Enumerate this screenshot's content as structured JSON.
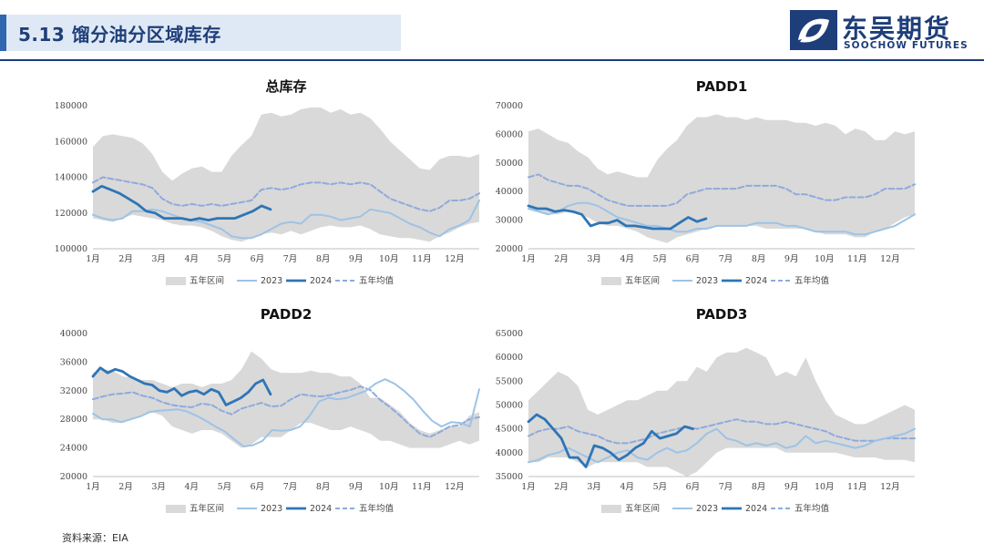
{
  "header": {
    "title": "5.13 馏分油分区域库存",
    "logo_cn": "东吴期货",
    "logo_en": "SOOCHOW FUTURES"
  },
  "footer": {
    "source": "资料来源：EIA"
  },
  "colors": {
    "band": "#d9d9d9",
    "y2023": "#9dc3e6",
    "y2024": "#2e75b6",
    "avg": "#8faadc"
  },
  "chart_data": [
    {
      "id": "total",
      "type": "line",
      "title": "总库存",
      "ylim": [
        100000,
        180000
      ],
      "yticks": [
        "100000",
        "120000",
        "140000",
        "160000",
        "180000"
      ],
      "ytick_values": [
        100000,
        120000,
        140000,
        160000,
        180000
      ],
      "xticks": [
        "1月",
        "2月",
        "3月",
        "4月",
        "5月",
        "6月",
        "7月",
        "8月",
        "9月",
        "10月",
        "11月",
        "12月"
      ],
      "legend": [
        "五年区间",
        "2023",
        "2024",
        "五年均值"
      ],
      "band_max": [
        157000,
        163000,
        164000,
        163000,
        162000,
        159000,
        153000,
        143000,
        138000,
        142000,
        145000,
        146000,
        143000,
        143000,
        152000,
        158000,
        163000,
        175000,
        176000,
        174000,
        175000,
        178000,
        179000,
        179000,
        176000,
        178000,
        175000,
        176000,
        173000,
        167000,
        160000,
        155000,
        150000,
        145000,
        144000,
        150000,
        152000,
        152000,
        151000,
        153000
      ],
      "band_min": [
        117000,
        116000,
        115000,
        117000,
        119000,
        118000,
        117000,
        116000,
        114000,
        113000,
        113000,
        112000,
        110000,
        107000,
        105000,
        104000,
        106000,
        108000,
        109000,
        108000,
        110000,
        108000,
        110000,
        112000,
        113000,
        112000,
        112000,
        113000,
        111000,
        108000,
        107000,
        106000,
        106000,
        105000,
        104000,
        107000,
        109000,
        112000,
        114000,
        115000
      ],
      "avg": [
        137000,
        140000,
        139000,
        138000,
        137000,
        136000,
        134000,
        128000,
        125000,
        124000,
        125000,
        124000,
        125000,
        124000,
        125000,
        126000,
        127000,
        133000,
        134000,
        133000,
        134000,
        136000,
        137000,
        137000,
        136000,
        137000,
        136000,
        137000,
        136000,
        132000,
        128000,
        126000,
        124000,
        122000,
        121000,
        123000,
        127000,
        127000,
        128000,
        131000
      ],
      "y2023": [
        119000,
        117000,
        116000,
        117000,
        121000,
        121000,
        122000,
        121000,
        119000,
        117000,
        116000,
        115000,
        113000,
        111000,
        107000,
        106000,
        106000,
        108000,
        111000,
        114000,
        115000,
        114000,
        119000,
        119000,
        118000,
        116000,
        117000,
        118000,
        122000,
        121000,
        120000,
        117000,
        114000,
        112000,
        109000,
        107000,
        111000,
        113000,
        116000,
        127000
      ],
      "y2024": [
        132000,
        135000,
        133000,
        131000,
        128000,
        125000,
        121000,
        120000,
        117000,
        117000,
        117000,
        116000,
        117000,
        116000,
        117000,
        117000,
        117000,
        119000,
        121000,
        124000,
        122000
      ],
      "y2024_end_x": 6.4
    },
    {
      "id": "padd1",
      "type": "line",
      "title": "PADD1",
      "ylim": [
        20000,
        70000
      ],
      "yticks": [
        "20000",
        "30000",
        "40000",
        "50000",
        "60000",
        "70000"
      ],
      "ytick_values": [
        20000,
        30000,
        40000,
        50000,
        60000,
        70000
      ],
      "xticks": [
        "1月",
        "2月",
        "3月",
        "4月",
        "5月",
        "6月",
        "7月",
        "8月",
        "9月",
        "10月",
        "11月",
        "12月"
      ],
      "legend": [
        "五年区间",
        "2023",
        "2024",
        "五年均值"
      ],
      "band_max": [
        61000,
        62000,
        60000,
        58000,
        57000,
        54000,
        52000,
        48000,
        46000,
        47000,
        46000,
        45000,
        45000,
        51000,
        55000,
        58000,
        63000,
        66000,
        66000,
        67000,
        66000,
        66000,
        65000,
        66000,
        65000,
        65000,
        65000,
        64000,
        64000,
        63000,
        64000,
        63000,
        60000,
        62000,
        61000,
        58000,
        58000,
        61000,
        60000,
        61000
      ],
      "band_min": [
        34000,
        33000,
        32000,
        32000,
        33000,
        32000,
        31000,
        29000,
        28000,
        28000,
        27000,
        26000,
        24000,
        23000,
        22000,
        24000,
        25000,
        26000,
        27000,
        28000,
        28000,
        28000,
        28000,
        28000,
        27000,
        27000,
        27000,
        27000,
        27000,
        26000,
        25000,
        25000,
        25000,
        24000,
        24000,
        26000,
        27000,
        29000,
        31000,
        32000
      ],
      "avg": [
        45000,
        46000,
        44000,
        43000,
        42000,
        42000,
        41000,
        39000,
        37000,
        36000,
        35000,
        35000,
        35000,
        35000,
        35000,
        36000,
        39000,
        40000,
        41000,
        41000,
        41000,
        41000,
        42000,
        42000,
        42000,
        42000,
        41000,
        39000,
        39000,
        38000,
        37000,
        37000,
        38000,
        38000,
        38000,
        39000,
        41000,
        41000,
        41000,
        42500
      ],
      "y2023": [
        34000,
        33000,
        32000,
        33000,
        35000,
        36000,
        36000,
        35000,
        33000,
        31000,
        30000,
        29000,
        28000,
        28000,
        27000,
        26000,
        26000,
        27000,
        27000,
        28000,
        28000,
        28000,
        28000,
        29000,
        29000,
        29000,
        28000,
        28000,
        27000,
        26000,
        26000,
        26000,
        26000,
        25000,
        25000,
        26000,
        27000,
        28000,
        30000,
        32000
      ],
      "y2024": [
        35000,
        34000,
        34000,
        33000,
        33500,
        33000,
        32000,
        28000,
        29000,
        29000,
        30000,
        28000,
        28000,
        27500,
        27000,
        27000,
        27000,
        29000,
        31000,
        29500,
        30500
      ],
      "y2024_end_x": 6.4
    },
    {
      "id": "padd2",
      "type": "line",
      "title": "PADD2",
      "ylim": [
        20000,
        40000
      ],
      "yticks": [
        "20000",
        "24000",
        "28000",
        "32000",
        "36000",
        "40000"
      ],
      "ytick_values": [
        20000,
        24000,
        28000,
        32000,
        36000,
        40000
      ],
      "xticks": [
        "1月",
        "2月",
        "3月",
        "4月",
        "5月",
        "6月",
        "7月",
        "8月",
        "9月",
        "10月",
        "11月",
        "12月"
      ],
      "legend": [
        "五年区间",
        "2023",
        "2024",
        "五年均值"
      ],
      "band_max": [
        34500,
        35000,
        34800,
        34000,
        33800,
        33500,
        33500,
        33000,
        32500,
        33000,
        33000,
        32500,
        33000,
        33000,
        33500,
        35000,
        37500,
        36500,
        35000,
        34500,
        34500,
        34500,
        34800,
        34500,
        34500,
        34000,
        34000,
        33000,
        31000,
        31000,
        30000,
        29000,
        27500,
        26500,
        26000,
        26500,
        27000,
        27000,
        28500,
        29000
      ],
      "band_min": [
        28000,
        28000,
        27500,
        27500,
        28000,
        28500,
        29000,
        28500,
        27000,
        26500,
        26000,
        26500,
        26500,
        26000,
        25000,
        24000,
        24500,
        25500,
        25500,
        25500,
        26500,
        27500,
        27500,
        27000,
        26500,
        26500,
        27000,
        26500,
        26000,
        25000,
        25000,
        24500,
        24000,
        24000,
        24000,
        24000,
        24500,
        25000,
        24500,
        25000
      ],
      "avg": [
        30800,
        31200,
        31500,
        31600,
        31800,
        31300,
        31000,
        30400,
        30000,
        29800,
        29700,
        30200,
        30000,
        29200,
        28700,
        29500,
        29900,
        30300,
        29800,
        29900,
        30800,
        31500,
        31300,
        31200,
        31400,
        31800,
        32100,
        32600,
        32100,
        30700,
        29700,
        28500,
        27200,
        26000,
        25500,
        26200,
        27000,
        27200,
        28000,
        28300
      ],
      "y2023": [
        28800,
        28000,
        28000,
        27600,
        28000,
        28400,
        29000,
        29200,
        29300,
        29400,
        29100,
        28500,
        27800,
        27000,
        26300,
        25200,
        24200,
        24400,
        25000,
        26500,
        26400,
        26500,
        27000,
        28500,
        30500,
        31000,
        30800,
        31000,
        31500,
        32000,
        33000,
        33600,
        33000,
        32000,
        30800,
        29200,
        27800,
        27000,
        27600,
        27500,
        27000,
        32200
      ],
      "y2024": [
        34000,
        35200,
        34500,
        35000,
        34700,
        34000,
        33500,
        33000,
        32800,
        32000,
        31800,
        32300,
        31300,
        31800,
        32000,
        31500,
        32200,
        31800,
        30000,
        30500,
        31000,
        31800,
        33000,
        33500,
        31500
      ],
      "y2024_end_x": 6.4
    },
    {
      "id": "padd3",
      "type": "line",
      "title": "PADD3",
      "ylim": [
        35000,
        65000
      ],
      "yticks": [
        "35000",
        "40000",
        "45000",
        "50000",
        "55000",
        "60000",
        "65000"
      ],
      "ytick_values": [
        35000,
        40000,
        45000,
        50000,
        55000,
        60000,
        65000
      ],
      "xticks": [
        "1月",
        "2月",
        "3月",
        "4月",
        "5月",
        "6月",
        "7月",
        "8月",
        "9月",
        "10月",
        "11月",
        "12月"
      ],
      "legend": [
        "五年区间",
        "2023",
        "2024",
        "五年均值"
      ],
      "band_max": [
        51000,
        53000,
        55000,
        57000,
        56000,
        54000,
        49000,
        48000,
        49000,
        50000,
        51000,
        51000,
        52000,
        53000,
        53000,
        55000,
        55000,
        58000,
        57000,
        60000,
        61000,
        61000,
        62000,
        61000,
        60000,
        56000,
        57000,
        56000,
        60000,
        55000,
        51000,
        48000,
        47000,
        46000,
        46000,
        47000,
        48000,
        49000,
        50000,
        49000
      ],
      "band_min": [
        38000,
        38000,
        39000,
        39000,
        39000,
        38000,
        37000,
        38000,
        38000,
        38000,
        38000,
        38000,
        37000,
        37000,
        37000,
        36000,
        35000,
        36000,
        38000,
        40000,
        41000,
        41000,
        41000,
        41000,
        41000,
        41000,
        40000,
        40000,
        40000,
        40000,
        40000,
        40000,
        39500,
        39000,
        39000,
        39000,
        38500,
        38500,
        38500,
        38000
      ],
      "avg": [
        43500,
        44500,
        45000,
        45000,
        45500,
        44500,
        44000,
        43500,
        42500,
        42000,
        42000,
        42500,
        43000,
        44000,
        44500,
        45000,
        45500,
        45000,
        45500,
        46000,
        46500,
        47000,
        46500,
        46500,
        46000,
        46000,
        46500,
        46000,
        45500,
        45000,
        44500,
        43500,
        43000,
        42500,
        42500,
        42500,
        43000,
        43000,
        43000,
        43000
      ],
      "y2023": [
        38000,
        38500,
        39500,
        40000,
        41000,
        40000,
        39000,
        38000,
        39000,
        40000,
        40500,
        39000,
        38500,
        40000,
        41000,
        40000,
        40500,
        42000,
        44000,
        45000,
        43000,
        42500,
        41500,
        42000,
        41500,
        42000,
        41000,
        41500,
        43500,
        42000,
        42500,
        42000,
        41500,
        41000,
        41500,
        42500,
        43000,
        43500,
        44000,
        45000
      ],
      "y2024": [
        46500,
        48000,
        47000,
        45000,
        43000,
        39000,
        39000,
        37000,
        41500,
        41000,
        40000,
        38500,
        39500,
        41000,
        42000,
        44500,
        43000,
        43500,
        44000,
        45500,
        45000
      ],
      "y2024_end_x": 6.0
    }
  ]
}
